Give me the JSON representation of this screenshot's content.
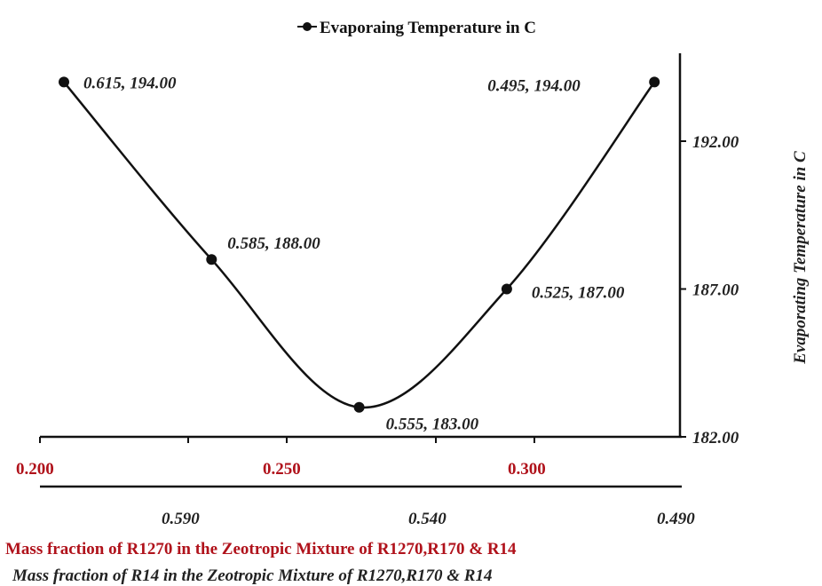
{
  "chart_data": {
    "type": "line",
    "title": "",
    "legend": {
      "label": "Evaporaing Temperature in C",
      "placement": "top-center"
    },
    "ylabel": "Evaporating Temperature in C",
    "ylim": [
      182,
      195
    ],
    "y_ticks": [
      "182.00",
      "187.00",
      "192.00"
    ],
    "y_tick_values": [
      182,
      187,
      192
    ],
    "xlabel_primary": "Mass fraction of R1270 in the Zeotropic Mixture of R1270,R170 & R14",
    "x_ticks_primary": [
      "0.200",
      "0.250",
      "0.300"
    ],
    "xlabel_secondary": "Mass fraction of R14 in the Zeotropic Mixture of R1270,R170 & R14",
    "x_ticks_secondary": [
      "0.590",
      "0.540",
      "0.490"
    ],
    "points": [
      {
        "x": 1,
        "y": 194,
        "label": "0.615, 194.00"
      },
      {
        "x": 2,
        "y": 188,
        "label": "0.585, 188.00"
      },
      {
        "x": 3,
        "y": 183,
        "label": "0.555, 183.00"
      },
      {
        "x": 4,
        "y": 187,
        "label": "0.525, 187.00"
      },
      {
        "x": 5,
        "y": 194,
        "label": "0.495, 194.00"
      }
    ],
    "colors": {
      "line": "#111111",
      "primary_axis_text": "#b0121b",
      "secondary_axis_text": "#222222"
    }
  }
}
